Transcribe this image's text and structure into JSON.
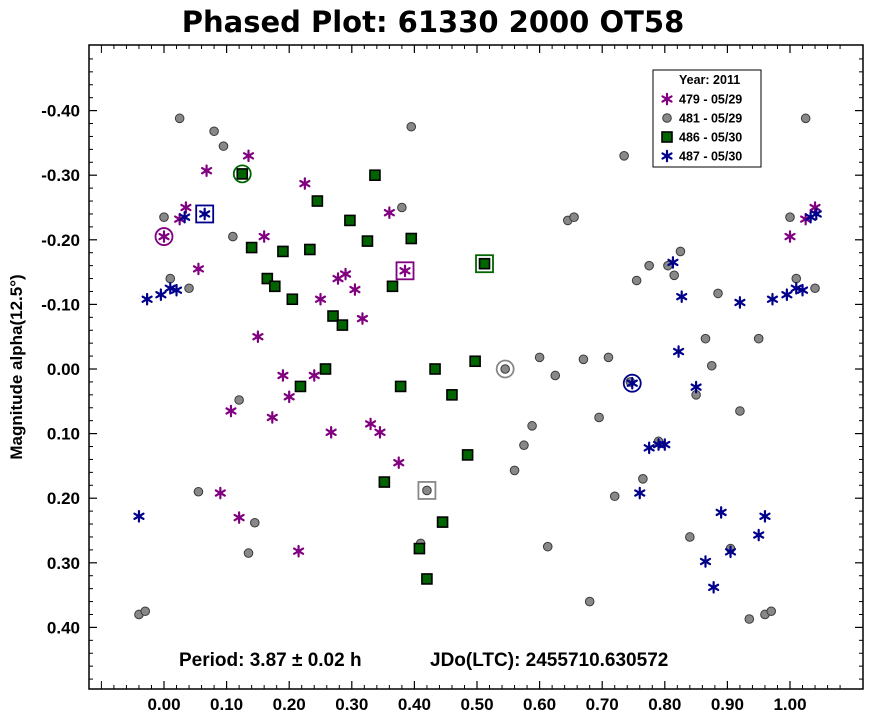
{
  "chart_data": {
    "type": "scatter",
    "title": "Phased Plot: 61330 2000 OT58",
    "xlabel": "",
    "ylabel": "Magnitude alpha(12.5°)",
    "xlim": [
      -0.12,
      1.12
    ],
    "ylim": [
      0.495,
      -0.495
    ],
    "y_inverted": true,
    "grid": false,
    "x_ticks": [
      "0.00",
      "0.10",
      "0.20",
      "0.30",
      "0.40",
      "0.50",
      "0.60",
      "0.70",
      "0.80",
      "0.90",
      "1.00"
    ],
    "y_ticks": [
      "-0.40",
      "-0.30",
      "-0.20",
      "-0.10",
      "0.00",
      "0.10",
      "0.20",
      "0.30",
      "0.40"
    ],
    "notes": {
      "period": "Period: 3.87 ± 0.02 h",
      "jdo": "JDo(LTC): 2455710.630572"
    },
    "legend": {
      "position": "top-right",
      "title": "Year: 2011",
      "entries": [
        "479 - 05/29",
        "481 - 05/29",
        "486 - 05/30",
        "487 - 05/30"
      ]
    },
    "series": [
      {
        "name": "479 - 05/29",
        "marker": "asterisk",
        "color": "#800080",
        "points": [
          [
            0.0,
            -0.205
          ],
          [
            0.025,
            -0.232
          ],
          [
            0.035,
            -0.25
          ],
          [
            0.055,
            -0.155
          ],
          [
            0.068,
            -0.307
          ],
          [
            0.09,
            0.192
          ],
          [
            0.107,
            0.065
          ],
          [
            0.12,
            0.23
          ],
          [
            0.135,
            -0.33
          ],
          [
            0.15,
            -0.05
          ],
          [
            0.16,
            -0.205
          ],
          [
            0.173,
            0.075
          ],
          [
            0.19,
            0.01
          ],
          [
            0.2,
            0.043
          ],
          [
            0.215,
            0.282
          ],
          [
            0.225,
            -0.287
          ],
          [
            0.24,
            0.01
          ],
          [
            0.25,
            -0.108
          ],
          [
            0.267,
            0.098
          ],
          [
            0.278,
            -0.14
          ],
          [
            0.29,
            -0.147
          ],
          [
            0.305,
            -0.123
          ],
          [
            0.317,
            -0.078
          ],
          [
            0.33,
            0.085
          ],
          [
            0.345,
            0.098
          ],
          [
            0.36,
            -0.242
          ],
          [
            0.375,
            0.145
          ],
          [
            0.385,
            -0.152
          ],
          [
            1.0,
            -0.205
          ],
          [
            1.025,
            -0.232
          ],
          [
            1.04,
            -0.25
          ]
        ]
      },
      {
        "name": "481 - 05/29",
        "marker": "circle",
        "color": "#888888",
        "points": [
          [
            -0.04,
            0.38
          ],
          [
            -0.03,
            0.375
          ],
          [
            0.0,
            -0.235
          ],
          [
            0.01,
            -0.14
          ],
          [
            0.025,
            -0.388
          ],
          [
            0.04,
            -0.125
          ],
          [
            0.055,
            0.19
          ],
          [
            0.08,
            -0.368
          ],
          [
            0.095,
            -0.345
          ],
          [
            0.11,
            -0.205
          ],
          [
            0.12,
            0.048
          ],
          [
            0.135,
            0.285
          ],
          [
            0.145,
            0.238
          ],
          [
            0.38,
            -0.25
          ],
          [
            0.395,
            -0.375
          ],
          [
            0.41,
            0.27
          ],
          [
            0.42,
            0.188
          ],
          [
            0.545,
            0.0
          ],
          [
            0.56,
            0.157
          ],
          [
            0.575,
            0.118
          ],
          [
            0.588,
            0.088
          ],
          [
            0.6,
            -0.018
          ],
          [
            0.613,
            0.275
          ],
          [
            0.625,
            0.01
          ],
          [
            0.645,
            -0.23
          ],
          [
            0.655,
            -0.235
          ],
          [
            0.67,
            -0.015
          ],
          [
            0.68,
            0.36
          ],
          [
            0.695,
            0.075
          ],
          [
            0.71,
            -0.018
          ],
          [
            0.72,
            0.197
          ],
          [
            0.735,
            -0.33
          ],
          [
            0.745,
            0.02
          ],
          [
            0.755,
            -0.137
          ],
          [
            0.765,
            0.17
          ],
          [
            0.775,
            -0.16
          ],
          [
            0.79,
            0.112
          ],
          [
            0.805,
            -0.16
          ],
          [
            0.815,
            -0.145
          ],
          [
            0.825,
            -0.182
          ],
          [
            0.84,
            0.26
          ],
          [
            0.85,
            0.04
          ],
          [
            0.865,
            -0.047
          ],
          [
            0.875,
            -0.005
          ],
          [
            0.885,
            -0.117
          ],
          [
            0.905,
            0.278
          ],
          [
            0.92,
            0.065
          ],
          [
            0.935,
            0.387
          ],
          [
            0.95,
            -0.047
          ],
          [
            0.96,
            0.38
          ],
          [
            0.97,
            0.375
          ],
          [
            1.0,
            -0.235
          ],
          [
            1.01,
            -0.14
          ],
          [
            1.025,
            -0.388
          ],
          [
            1.04,
            -0.125
          ]
        ]
      },
      {
        "name": "486 - 05/30",
        "marker": "square",
        "color": "#006400",
        "points": [
          [
            0.125,
            -0.302
          ],
          [
            0.14,
            -0.188
          ],
          [
            0.165,
            -0.14
          ],
          [
            0.177,
            -0.128
          ],
          [
            0.19,
            -0.182
          ],
          [
            0.205,
            -0.108
          ],
          [
            0.218,
            0.027
          ],
          [
            0.233,
            -0.185
          ],
          [
            0.245,
            -0.26
          ],
          [
            0.258,
            0.0
          ],
          [
            0.27,
            -0.082
          ],
          [
            0.285,
            -0.068
          ],
          [
            0.297,
            -0.23
          ],
          [
            0.325,
            -0.198
          ],
          [
            0.337,
            -0.3
          ],
          [
            0.352,
            0.175
          ],
          [
            0.365,
            -0.128
          ],
          [
            0.378,
            0.027
          ],
          [
            0.395,
            -0.202
          ],
          [
            0.408,
            0.278
          ],
          [
            0.42,
            0.325
          ],
          [
            0.433,
            0.0
          ],
          [
            0.445,
            0.237
          ],
          [
            0.46,
            0.04
          ],
          [
            0.485,
            0.133
          ],
          [
            0.497,
            -0.012
          ],
          [
            0.512,
            -0.163
          ]
        ]
      },
      {
        "name": "487 - 05/30",
        "marker": "asterisk",
        "color": "#00008b",
        "points": [
          [
            -0.04,
            0.228
          ],
          [
            -0.027,
            -0.108
          ],
          [
            -0.005,
            -0.115
          ],
          [
            0.01,
            -0.125
          ],
          [
            0.02,
            -0.122
          ],
          [
            0.033,
            -0.235
          ],
          [
            0.065,
            -0.24
          ],
          [
            0.748,
            0.022
          ],
          [
            0.76,
            0.192
          ],
          [
            0.775,
            0.122
          ],
          [
            0.79,
            0.117
          ],
          [
            0.8,
            0.117
          ],
          [
            0.813,
            -0.165
          ],
          [
            0.822,
            -0.027
          ],
          [
            0.827,
            -0.112
          ],
          [
            0.85,
            0.028
          ],
          [
            0.865,
            0.298
          ],
          [
            0.878,
            0.338
          ],
          [
            0.89,
            0.222
          ],
          [
            0.905,
            0.283
          ],
          [
            0.92,
            -0.103
          ],
          [
            0.95,
            0.257
          ],
          [
            0.96,
            0.228
          ],
          [
            0.972,
            -0.108
          ],
          [
            0.995,
            -0.115
          ],
          [
            1.01,
            -0.125
          ],
          [
            1.02,
            -0.122
          ],
          [
            1.033,
            -0.235
          ],
          [
            1.042,
            -0.24
          ]
        ]
      }
    ],
    "highlighted_points": [
      {
        "series": "479 - 05/29",
        "x": 0.0,
        "y": -0.205,
        "shape": "circle"
      },
      {
        "series": "479 - 05/29",
        "x": 0.385,
        "y": -0.152,
        "shape": "square"
      },
      {
        "series": "481 - 05/29",
        "x": 0.545,
        "y": 0.0,
        "shape": "circle"
      },
      {
        "series": "481 - 05/29",
        "x": 0.42,
        "y": 0.188,
        "shape": "square"
      },
      {
        "series": "486 - 05/30",
        "x": 0.125,
        "y": -0.302,
        "shape": "circle"
      },
      {
        "series": "486 - 05/30",
        "x": 0.512,
        "y": -0.163,
        "shape": "square"
      },
      {
        "series": "487 - 05/30",
        "x": 0.748,
        "y": 0.022,
        "shape": "circle"
      },
      {
        "series": "487 - 05/30",
        "x": 0.065,
        "y": -0.24,
        "shape": "square"
      }
    ]
  }
}
